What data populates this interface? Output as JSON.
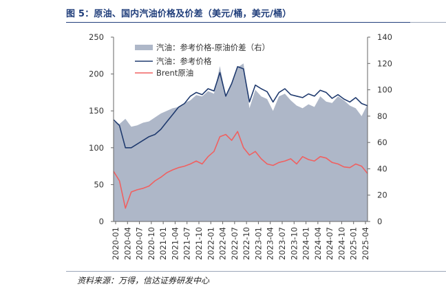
{
  "title": "图 5：原油、国内汽油价格及价差（美元/桶，美元/桶）",
  "source": "资料来源：万得，信达证券研发中心",
  "chart_data": {
    "type": "line",
    "x_labels": [
      "2020-01",
      "2020-04",
      "2020-07",
      "2020-10",
      "2021-01",
      "2021-04",
      "2021-07",
      "2021-10",
      "2022-01",
      "2022-04",
      "2022-07",
      "2022-10",
      "2023-01",
      "2023-04",
      "2023-07",
      "2023-10",
      "2024-01",
      "2024-04",
      "2024-07",
      "2024-10",
      "2025-01",
      "2025-04"
    ],
    "left_axis": {
      "ylim": [
        0,
        250
      ],
      "ticks": [
        0,
        50,
        100,
        150,
        200,
        250
      ]
    },
    "right_axis": {
      "ylim": [
        0,
        140
      ],
      "ticks": [
        0,
        20,
        40,
        60,
        80,
        100,
        120,
        140
      ]
    },
    "colors": {
      "spread": "#aeb7c8",
      "gasoline": "#1f3a6e",
      "brent": "#f06060"
    },
    "series": [
      {
        "name": "汽油：参考价格-原油价差（右）",
        "type": "area",
        "axis": "right",
        "values": [
          76,
          74,
          78,
          72,
          73,
          75,
          76,
          79,
          82,
          84,
          86,
          87,
          90,
          92,
          96,
          95,
          99,
          97,
          118,
          95,
          105,
          117,
          120,
          86,
          100,
          95,
          93,
          84,
          95,
          97,
          92,
          88,
          86,
          89,
          87,
          95,
          91,
          90,
          95,
          92,
          88,
          86,
          80,
          89
        ]
      },
      {
        "name": "汽油：参考价格",
        "type": "line",
        "axis": "left",
        "values": [
          138,
          130,
          100,
          100,
          105,
          110,
          115,
          118,
          125,
          135,
          145,
          155,
          160,
          170,
          175,
          172,
          180,
          177,
          202,
          170,
          187,
          210,
          207,
          162,
          185,
          180,
          176,
          162,
          175,
          180,
          172,
          170,
          168,
          173,
          170,
          178,
          175,
          167,
          172,
          166,
          162,
          168,
          160,
          157
        ]
      },
      {
        "name": "Brent原油",
        "type": "line",
        "axis": "left",
        "values": [
          68,
          55,
          18,
          40,
          43,
          45,
          48,
          55,
          60,
          66,
          70,
          73,
          75,
          78,
          82,
          78,
          88,
          95,
          115,
          118,
          110,
          122,
          100,
          90,
          95,
          85,
          78,
          76,
          80,
          82,
          85,
          78,
          88,
          84,
          82,
          88,
          86,
          80,
          78,
          74,
          73,
          78,
          75,
          65
        ]
      }
    ]
  }
}
